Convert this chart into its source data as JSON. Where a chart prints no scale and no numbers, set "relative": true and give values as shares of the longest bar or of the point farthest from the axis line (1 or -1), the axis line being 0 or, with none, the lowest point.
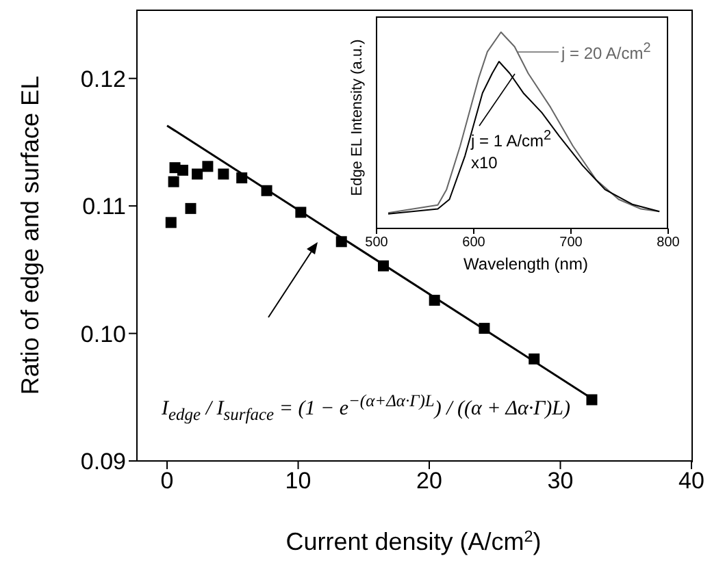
{
  "chart_data": [
    {
      "type": "scatter",
      "xlabel": "Current density (A/cm$^{2}$)",
      "ylabel": "Ratio of edge and surface EL",
      "xlim": [
        -2.3,
        40
      ],
      "xticks": [
        0,
        10,
        20,
        30,
        40
      ],
      "ylim": [
        0.09,
        0.1254
      ],
      "yticks": [
        {
          "value": 0.09,
          "label": "0.09"
        },
        {
          "value": 0.1,
          "label": "0.10"
        },
        {
          "value": 0.11,
          "label": "0.11"
        },
        {
          "value": 0.12,
          "label": "0.12"
        }
      ],
      "marker": "square",
      "series": [
        {
          "color": "#000000",
          "x": [
            0.3,
            0.5,
            0.6,
            1.0,
            1.2,
            1.8,
            2.3,
            3.1,
            4.3,
            5.7,
            7.6,
            10.2,
            13.3,
            16.5,
            20.4,
            24.2,
            28.0,
            32.4
          ],
          "values": [
            0.1087,
            0.1119,
            0.113,
            null,
            0.1128,
            0.1098,
            0.1125,
            0.1131,
            0.1125,
            0.1122,
            0.1112,
            0.1095,
            0.1072,
            0.1053,
            0.1026,
            0.1004,
            0.098,
            0.0948
          ]
        },
        {
          "type": "line",
          "color": "#000000",
          "marker": "none",
          "x": [
            0,
            32.4
          ],
          "values": [
            0.1163,
            0.0949
          ]
        }
      ],
      "annotations": [
        "I$_{edge}$ / I$_{surface}$ = (1 − e$^{−(α+Δα·Γ)L}$) / ((α + Δα·Γ)L)"
      ]
    },
    {
      "type": "line",
      "relative": true,
      "xlabel": "Wavelength (nm)",
      "ylabel": "Edge EL Intensity (a.u.)",
      "xlim": [
        500,
        800
      ],
      "xticks": [
        500,
        600,
        700,
        800
      ],
      "marker": "none",
      "series": [
        {
          "name": "j = 20 A/cm$^{2}$",
          "color": "#666666",
          "x": [
            512,
            563,
            572,
            586,
            605,
            614,
            628,
            642,
            656,
            679,
            702,
            726,
            749,
            772,
            791
          ],
          "values": [
            0.079,
            0.119,
            0.198,
            0.42,
            0.765,
            0.9,
            1,
            0.926,
            0.79,
            0.617,
            0.42,
            0.247,
            0.148,
            0.099,
            0.086
          ]
        },
        {
          "name": "j = 1 A/cm$^{2}$ x10",
          "color": "#000000",
          "x": [
            512,
            563,
            575,
            591,
            609,
            619,
            626,
            637,
            651,
            670,
            688,
            712,
            735,
            763,
            791
          ],
          "values": [
            0.074,
            0.099,
            0.148,
            0.37,
            0.69,
            0.79,
            0.85,
            0.79,
            0.69,
            0.59,
            0.47,
            0.32,
            0.198,
            0.123,
            0.086
          ]
        }
      ]
    }
  ]
}
